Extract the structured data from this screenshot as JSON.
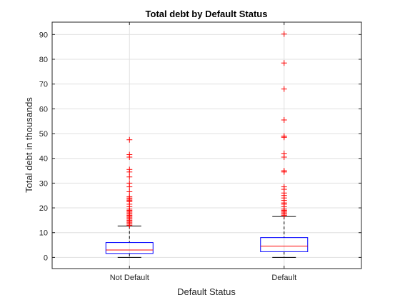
{
  "chart_data": {
    "type": "box",
    "title": "Total debt by Default Status",
    "xlabel": "Default Status",
    "ylabel": "Total debt in thousands",
    "ylim": [
      -4.5,
      95
    ],
    "yticks": [
      0,
      10,
      20,
      30,
      40,
      50,
      60,
      70,
      80,
      90
    ],
    "ytick_labels": [
      "0",
      "10",
      "20",
      "30",
      "40",
      "50",
      "60",
      "70",
      "80",
      "90"
    ],
    "grid": true,
    "categories": [
      "Not Default",
      "Default"
    ],
    "colors": {
      "box": "#0000ff",
      "median": "#ff0000",
      "whisker": "#000000",
      "outlier": "#ff0000",
      "axis": "#262626",
      "grid": "#e0e0e0"
    },
    "boxes": [
      {
        "category": "Not Default",
        "whisker_low": 0,
        "q1": 1.6,
        "median": 3.0,
        "q3": 6.0,
        "whisker_high": 12.7,
        "outliers": [
          13.0,
          13.5,
          14.0,
          14.5,
          15.0,
          15.5,
          16.0,
          16.5,
          17.0,
          17.5,
          18.0,
          18.5,
          19.0,
          19.5,
          20.5,
          21.5,
          22.5,
          23.0,
          23.5,
          24.0,
          24.5,
          26.5,
          28.5,
          30.0,
          32.5,
          34.5,
          35.5,
          40.5,
          41.5,
          47.5
        ]
      },
      {
        "category": "Default",
        "whisker_low": 0,
        "q1": 2.3,
        "median": 4.6,
        "q3": 8.0,
        "whisker_high": 16.5,
        "outliers": [
          17.0,
          17.5,
          18.0,
          18.5,
          19.0,
          19.5,
          20.5,
          21.5,
          22.0,
          23.0,
          24.0,
          25.0,
          26.0,
          27.5,
          28.5,
          34.5,
          35.0,
          40.5,
          42.0,
          48.5,
          49.0,
          55.5,
          68.0,
          78.5,
          90.2
        ]
      }
    ]
  }
}
